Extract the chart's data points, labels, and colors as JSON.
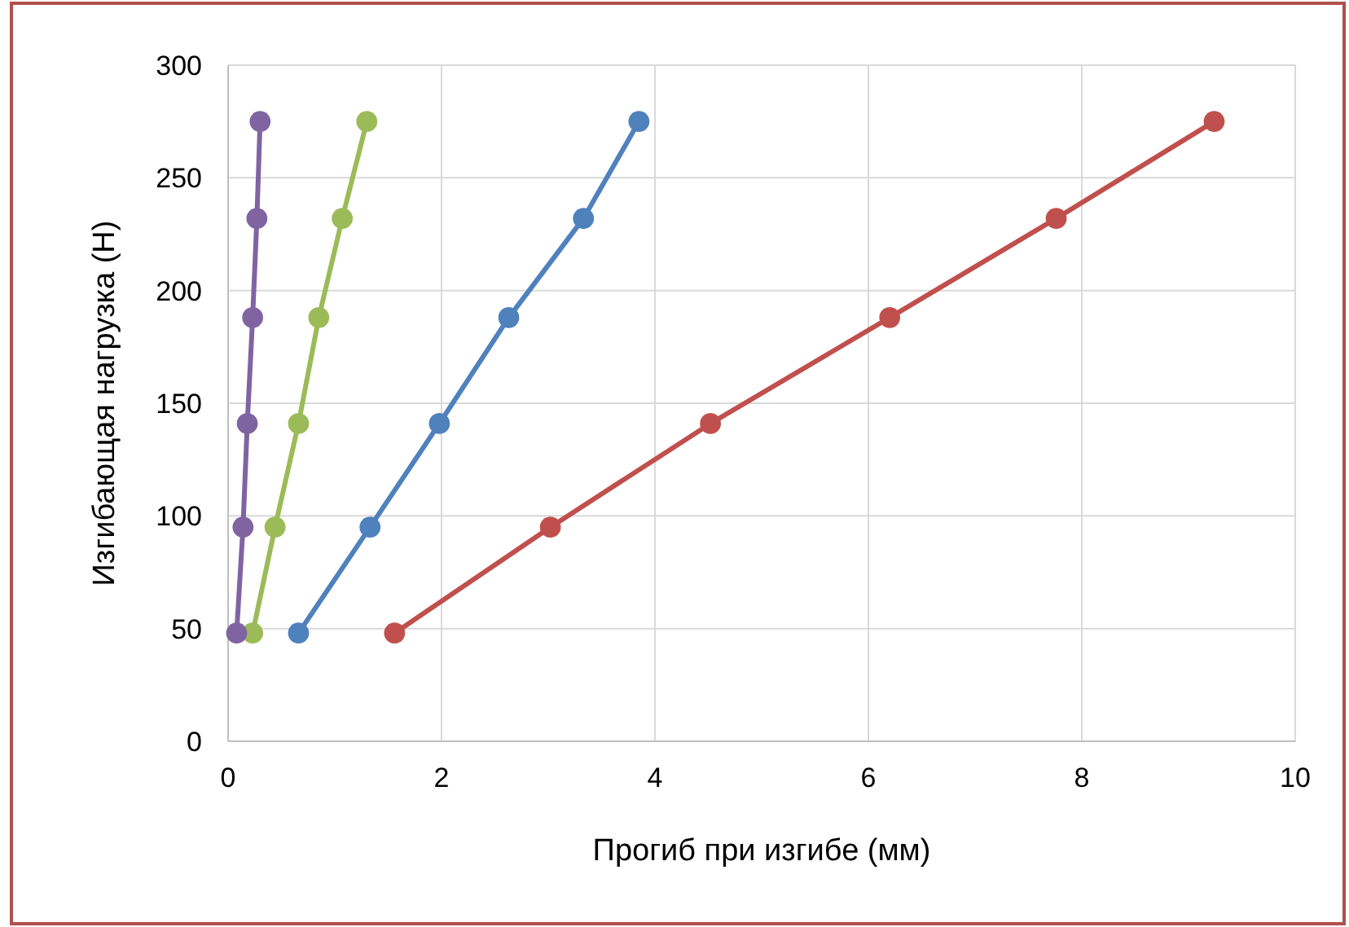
{
  "chart_data": {
    "type": "line",
    "xlabel": "Прогиб при изгибе (мм)",
    "ylabel": "Изгибающая нагрузка (Н)",
    "xlim": [
      0,
      10
    ],
    "xticks": [
      0,
      2,
      4,
      6,
      8,
      10
    ],
    "ylim": [
      0,
      300
    ],
    "yticks": [
      0,
      50,
      100,
      150,
      200,
      250,
      300
    ],
    "grid": true,
    "marker": "circle",
    "line_style": "solid",
    "series": [
      {
        "color": "#c0504d",
        "x": [
          1.56,
          3.02,
          4.52,
          6.2,
          7.76,
          9.24
        ],
        "values": [
          48,
          95,
          141,
          188,
          232,
          275
        ]
      },
      {
        "color": "#4f81bd",
        "x": [
          0.66,
          1.33,
          1.98,
          2.63,
          3.33,
          3.85
        ],
        "values": [
          48,
          95,
          141,
          188,
          232,
          275
        ]
      },
      {
        "color": "#9bbb59",
        "x": [
          0.23,
          0.44,
          0.66,
          0.85,
          1.07,
          1.3
        ],
        "values": [
          48,
          95,
          141,
          188,
          232,
          275
        ]
      },
      {
        "color": "#8064a2",
        "x": [
          0.08,
          0.14,
          0.18,
          0.23,
          0.27,
          0.3
        ],
        "values": [
          48,
          95,
          141,
          188,
          232,
          275
        ]
      }
    ]
  }
}
